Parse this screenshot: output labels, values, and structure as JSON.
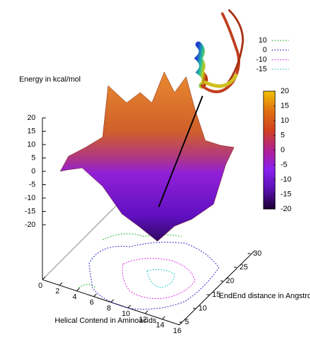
{
  "chart_data": {
    "type": "surface",
    "zlabel": "Energy in kcal/mol",
    "xlabel": "Helical Contend in Aminoacids",
    "ylabel": "EndEnd distance in Angstrom",
    "xlim": [
      0,
      16
    ],
    "xticks": [
      0,
      2,
      4,
      6,
      8,
      10,
      12,
      14,
      16
    ],
    "ylim": [
      5,
      30
    ],
    "yticks": [
      5,
      10,
      15,
      20,
      25,
      30
    ],
    "zlim": [
      -20,
      20
    ],
    "zticks": [
      20,
      15,
      10,
      5,
      0,
      -5,
      -10,
      -15,
      -20
    ],
    "colorbar": {
      "lim": [
        -20,
        20
      ],
      "ticks": [
        20,
        15,
        10,
        5,
        0,
        -5,
        -10,
        -15,
        -20
      ],
      "colors": [
        "#1a0030",
        "#5a10b0",
        "#8a20f0",
        "#b02090",
        "#d04020",
        "#e07010",
        "#f0c000"
      ]
    },
    "contours": [
      {
        "name": "10",
        "color": "#22b022"
      },
      {
        "name": "0",
        "color": "#2222c8"
      },
      {
        "name": "-10",
        "color": "#e020e0"
      },
      {
        "name": "-15",
        "color": "#20c8c8"
      }
    ]
  }
}
